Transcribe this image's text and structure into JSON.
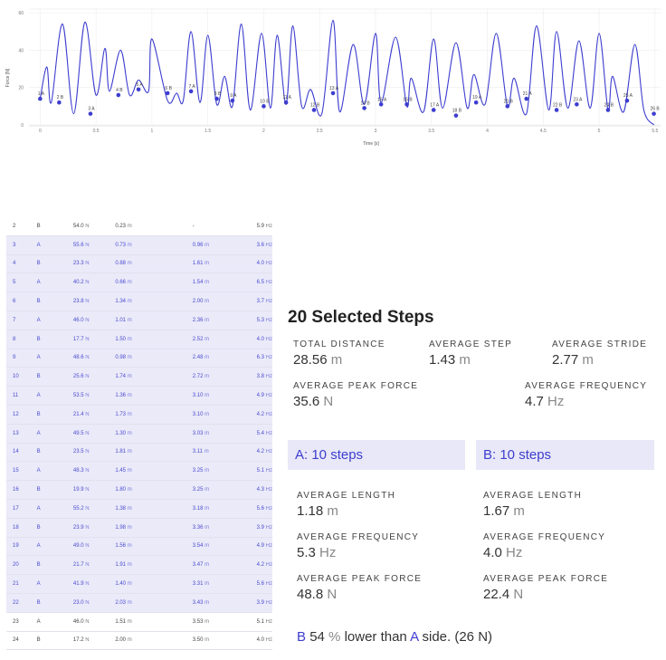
{
  "chart_data": {
    "type": "line",
    "title": "",
    "xlabel": "Time [s]",
    "ylabel": "Force [N]",
    "xlim": [
      -0.1,
      5.55
    ],
    "ylim": [
      0,
      62
    ],
    "x_ticks": [
      "0",
      "0.5",
      "1",
      "1.5",
      "2",
      "2.5",
      "3",
      "3.5",
      "4",
      "4.5",
      "5",
      "5.5"
    ],
    "y_ticks": [
      "0",
      "20",
      "40",
      "60"
    ],
    "grid": true,
    "line_color": "#3d3dcf",
    "series": [
      {
        "x": [
          0.0,
          0.06,
          0.1,
          0.2,
          0.3,
          0.4,
          0.5,
          0.58,
          0.62,
          0.72,
          0.8,
          0.88,
          0.97,
          1.0,
          1.14,
          1.22,
          1.28,
          1.35,
          1.43,
          1.5,
          1.58,
          1.65,
          1.72,
          1.8,
          1.88,
          1.98,
          2.06,
          2.12,
          2.2,
          2.26,
          2.34,
          2.42,
          2.52,
          2.62,
          2.68,
          2.8,
          2.9,
          3.0,
          3.05,
          3.18,
          3.28,
          3.32,
          3.43,
          3.52,
          3.6,
          3.72,
          3.82,
          3.88,
          3.98,
          4.08,
          4.18,
          4.24,
          4.35,
          4.44,
          4.55,
          4.62,
          4.72,
          4.82,
          4.92,
          5.0,
          5.08,
          5.12,
          5.22,
          5.32,
          5.4,
          5.49
        ],
        "y": [
          14,
          31,
          12,
          54,
          6,
          55,
          16,
          41,
          18,
          40,
          16,
          24,
          18,
          46,
          13,
          17,
          13,
          50,
          12,
          48,
          11,
          26,
          10,
          54,
          8,
          49,
          9,
          48,
          11,
          53,
          10,
          19,
          6,
          56,
          7,
          43,
          11,
          49,
          12,
          47,
          10,
          25,
          7,
          46,
          9,
          44,
          9,
          27,
          11,
          49,
          10,
          25,
          6,
          53,
          8,
          50,
          9,
          45,
          9,
          49,
          8,
          26,
          7,
          43,
          8,
          0
        ],
        "name": ""
      }
    ],
    "points": [
      {
        "label": "1 A",
        "x": 0.0,
        "y": 14
      },
      {
        "label": "2 B",
        "x": 0.17,
        "y": 12
      },
      {
        "label": "3 A",
        "x": 0.45,
        "y": 6
      },
      {
        "label": "4 B",
        "x": 0.7,
        "y": 16
      },
      {
        "label": "5 A",
        "x": 0.88,
        "y": 19
      },
      {
        "label": "6 B",
        "x": 1.14,
        "y": 17
      },
      {
        "label": "7 A",
        "x": 1.35,
        "y": 18
      },
      {
        "label": "8 B",
        "x": 1.58,
        "y": 14
      },
      {
        "label": "9 A",
        "x": 1.72,
        "y": 13
      },
      {
        "label": "10 B",
        "x": 2.0,
        "y": 10
      },
      {
        "label": "11 A",
        "x": 2.2,
        "y": 12
      },
      {
        "label": "12 B",
        "x": 2.45,
        "y": 8
      },
      {
        "label": "13 A",
        "x": 2.62,
        "y": 17
      },
      {
        "label": "14 B",
        "x": 2.9,
        "y": 9
      },
      {
        "label": "15 A",
        "x": 3.05,
        "y": 11
      },
      {
        "label": "16 B",
        "x": 3.28,
        "y": 11
      },
      {
        "label": "17 A",
        "x": 3.52,
        "y": 8
      },
      {
        "label": "18 B",
        "x": 3.72,
        "y": 5
      },
      {
        "label": "19 A",
        "x": 3.9,
        "y": 12
      },
      {
        "label": "20 B",
        "x": 4.18,
        "y": 10
      },
      {
        "label": "21 A",
        "x": 4.35,
        "y": 14
      },
      {
        "label": "22 B",
        "x": 4.62,
        "y": 8
      },
      {
        "label": "23 A",
        "x": 4.8,
        "y": 11
      },
      {
        "label": "24 B",
        "x": 5.08,
        "y": 8
      },
      {
        "label": "25 A",
        "x": 5.25,
        "y": 13
      },
      {
        "label": "26 B",
        "x": 5.49,
        "y": 6
      }
    ]
  },
  "table": {
    "units": {
      "force": "N",
      "dist": "m",
      "freq": "Hz"
    },
    "rows": [
      {
        "idx": "2",
        "side": "B",
        "force": "54.0",
        "dist": "0.23",
        "stride": "-",
        "stride_unit": "",
        "freq": "5.9",
        "selected": false
      },
      {
        "idx": "3",
        "side": "A",
        "force": "55.6",
        "dist": "0.73",
        "stride": "0.96",
        "stride_unit": "m",
        "freq": "3.6",
        "selected": true
      },
      {
        "idx": "4",
        "side": "B",
        "force": "23.3",
        "dist": "0.88",
        "stride": "1.61",
        "stride_unit": "m",
        "freq": "4.0",
        "selected": true
      },
      {
        "idx": "5",
        "side": "A",
        "force": "40.2",
        "dist": "0.66",
        "stride": "1.54",
        "stride_unit": "m",
        "freq": "6.5",
        "selected": true
      },
      {
        "idx": "6",
        "side": "B",
        "force": "23.8",
        "dist": "1.34",
        "stride": "2.00",
        "stride_unit": "m",
        "freq": "3.7",
        "selected": true
      },
      {
        "idx": "7",
        "side": "A",
        "force": "46.0",
        "dist": "1.01",
        "stride": "2.36",
        "stride_unit": "m",
        "freq": "5.3",
        "selected": true
      },
      {
        "idx": "8",
        "side": "B",
        "force": "17.7",
        "dist": "1.50",
        "stride": "2.52",
        "stride_unit": "m",
        "freq": "4.0",
        "selected": true
      },
      {
        "idx": "9",
        "side": "A",
        "force": "48.6",
        "dist": "0.98",
        "stride": "2.48",
        "stride_unit": "m",
        "freq": "6.3",
        "selected": true
      },
      {
        "idx": "10",
        "side": "B",
        "force": "25.6",
        "dist": "1.74",
        "stride": "2.72",
        "stride_unit": "m",
        "freq": "3.8",
        "selected": true
      },
      {
        "idx": "11",
        "side": "A",
        "force": "53.5",
        "dist": "1.36",
        "stride": "3.10",
        "stride_unit": "m",
        "freq": "4.9",
        "selected": true
      },
      {
        "idx": "12",
        "side": "B",
        "force": "21.4",
        "dist": "1.73",
        "stride": "3.10",
        "stride_unit": "m",
        "freq": "4.2",
        "selected": true
      },
      {
        "idx": "13",
        "side": "A",
        "force": "49.5",
        "dist": "1.30",
        "stride": "3.03",
        "stride_unit": "m",
        "freq": "5.4",
        "selected": true
      },
      {
        "idx": "14",
        "side": "B",
        "force": "23.5",
        "dist": "1.81",
        "stride": "3.11",
        "stride_unit": "m",
        "freq": "4.2",
        "selected": true
      },
      {
        "idx": "15",
        "side": "A",
        "force": "48.3",
        "dist": "1.45",
        "stride": "3.25",
        "stride_unit": "m",
        "freq": "5.1",
        "selected": true
      },
      {
        "idx": "16",
        "side": "B",
        "force": "19.9",
        "dist": "1.80",
        "stride": "3.25",
        "stride_unit": "m",
        "freq": "4.3",
        "selected": true
      },
      {
        "idx": "17",
        "side": "A",
        "force": "55.2",
        "dist": "1.38",
        "stride": "3.18",
        "stride_unit": "m",
        "freq": "5.6",
        "selected": true
      },
      {
        "idx": "18",
        "side": "B",
        "force": "23.9",
        "dist": "1.98",
        "stride": "3.36",
        "stride_unit": "m",
        "freq": "3.9",
        "selected": true
      },
      {
        "idx": "19",
        "side": "A",
        "force": "49.0",
        "dist": "1.56",
        "stride": "3.54",
        "stride_unit": "m",
        "freq": "4.9",
        "selected": true
      },
      {
        "idx": "20",
        "side": "B",
        "force": "21.7",
        "dist": "1.91",
        "stride": "3.47",
        "stride_unit": "m",
        "freq": "4.2",
        "selected": true
      },
      {
        "idx": "21",
        "side": "A",
        "force": "41.9",
        "dist": "1.40",
        "stride": "3.31",
        "stride_unit": "m",
        "freq": "5.6",
        "selected": true
      },
      {
        "idx": "22",
        "side": "B",
        "force": "23.0",
        "dist": "2.03",
        "stride": "3.43",
        "stride_unit": "m",
        "freq": "3.9",
        "selected": true
      },
      {
        "idx": "23",
        "side": "A",
        "force": "46.0",
        "dist": "1.51",
        "stride": "3.53",
        "stride_unit": "m",
        "freq": "5.1",
        "selected": false
      },
      {
        "idx": "24",
        "side": "B",
        "force": "17.2",
        "dist": "2.00",
        "stride": "3.50",
        "stride_unit": "m",
        "freq": "4.0",
        "selected": false
      }
    ]
  },
  "summary": {
    "title": "20 Selected Steps",
    "total_distance_label": "TOTAL DISTANCE",
    "total_distance": "28.56",
    "total_distance_unit": "m",
    "average_step_label": "AVERAGE STEP",
    "average_step": "1.43",
    "average_step_unit": "m",
    "average_stride_label": "AVERAGE STRIDE",
    "average_stride": "2.77",
    "average_stride_unit": "m",
    "average_peak_force_label": "AVERAGE PEAK FORCE",
    "average_peak_force": "35.6",
    "average_peak_force_unit": "N",
    "average_frequency_label": "AVERAGE FREQUENCY",
    "average_frequency": "4.7",
    "average_frequency_unit": "Hz"
  },
  "side_a": {
    "header": "A: 10 steps",
    "length_label": "AVERAGE LENGTH",
    "length": "1.18",
    "length_unit": "m",
    "freq_label": "AVERAGE FREQUENCY",
    "freq": "5.3",
    "freq_unit": "Hz",
    "force_label": "AVERAGE PEAK FORCE",
    "force": "48.8",
    "force_unit": "N"
  },
  "side_b": {
    "header": "B: 10 steps",
    "length_label": "AVERAGE LENGTH",
    "length": "1.67",
    "length_unit": "m",
    "freq_label": "AVERAGE FREQUENCY",
    "freq": "4.0",
    "freq_unit": "Hz",
    "force_label": "AVERAGE PEAK FORCE",
    "force": "22.4",
    "force_unit": "N"
  },
  "comparison": {
    "side": "B",
    "percent": "54",
    "percent_sign": "%",
    "text_mid": "lower than",
    "ref_side": "A",
    "text_end": "side.",
    "diff": "(26 N)"
  },
  "colors": {
    "accent": "#3d3dcf",
    "row_selected": "#eaeaf9",
    "side_header": "#e8e8f8"
  }
}
